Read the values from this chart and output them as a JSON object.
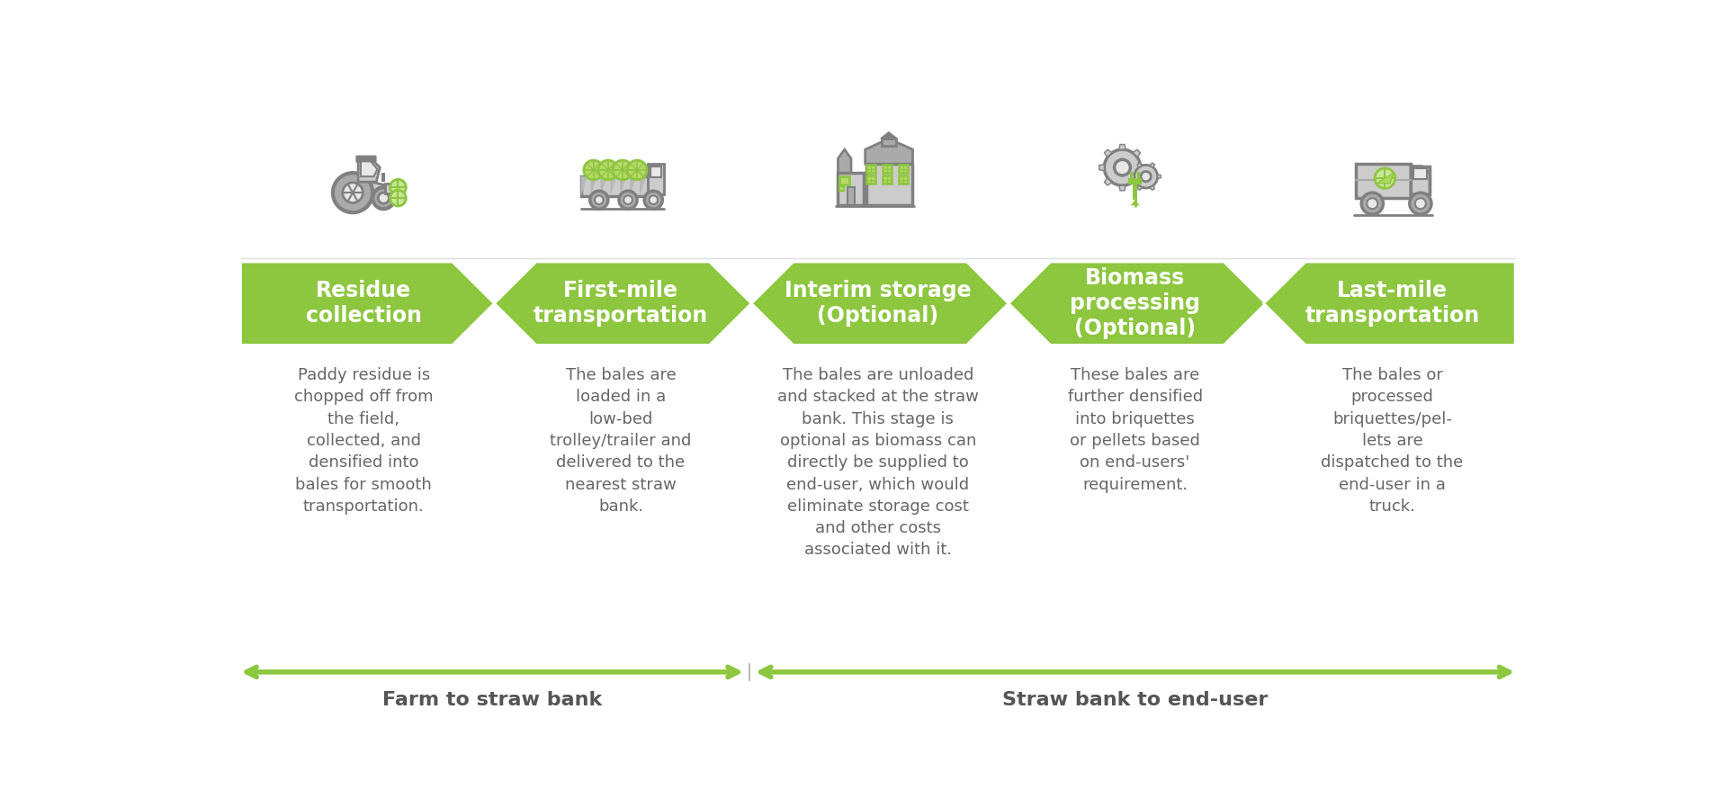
{
  "bg_color": "#ffffff",
  "green": "#8dc63f",
  "dark_green": "#6aaa1f",
  "gray_dark": "#808080",
  "gray_med": "#aaaaaa",
  "gray_light": "#cccccc",
  "gray_lightest": "#e8e8e8",
  "text_dark": "#666666",
  "text_white": "#ffffff",
  "steps": [
    {
      "title": "Residue\ncollection",
      "description": "Paddy residue is\nchopped off from\nthe field,\ncollected, and\ndensified into\nbales for smooth\ntransportation."
    },
    {
      "title": "First-mile\ntransportation",
      "description": "The bales are\nloaded in a\nlow-bed\ntrolley/trailer and\ndelivered to the\nnearest straw\nbank."
    },
    {
      "title": "Interim storage\n(Optional)",
      "description": "The bales are unloaded\nand stacked at the straw\nbank. This stage is\noptional as biomass can\ndirectly be supplied to\nend-user, which would\neliminate storage cost\nand other costs\nassociated with it."
    },
    {
      "title": "Biomass\nprocessing\n(Optional)",
      "description": "These bales are\nfurther densified\ninto briquettes\nor pellets based\non end-users'\nrequirement."
    },
    {
      "title": "Last-mile\ntransportation",
      "description": "The bales or\nprocessed\nbriquettes/pel-\nlets are\ndispatched to the\nend-user in a\ntruck."
    }
  ],
  "bottom_label_left": "Farm to straw bank",
  "bottom_label_right": "Straw bank to end-user",
  "figsize": [
    19.04,
    8.98
  ],
  "dpi": 100
}
